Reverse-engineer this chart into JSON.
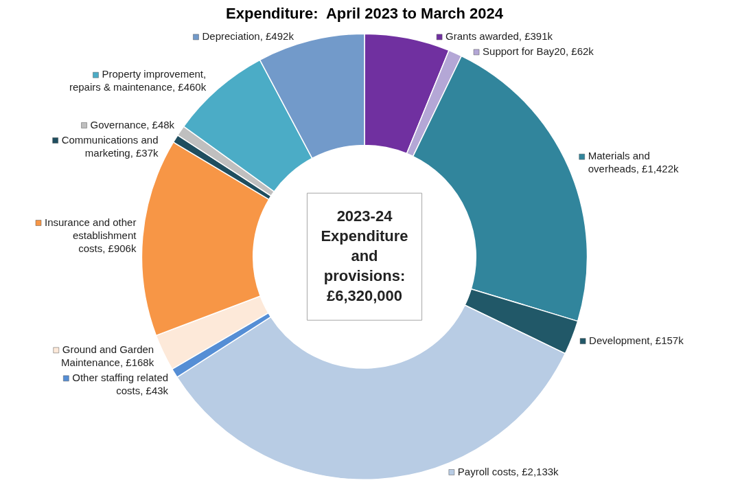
{
  "chart_data": {
    "type": "donut",
    "title": "Expenditure:  April 2023 to March 2024",
    "categories": [
      "Grants awarded",
      "Support for Bay20",
      "Materials and overheads",
      "Development",
      "Payroll costs",
      "Other staffing related costs",
      "Ground and Garden Maintenance",
      "Insurance and other establishment costs",
      "Communications and marketing",
      "Governance",
      "Property improvement, repairs & maintenance",
      "Depreciation"
    ],
    "legend": "left",
    "values": [
      391,
      62,
      1422,
      157,
      2133,
      43,
      168,
      906,
      37,
      48,
      460,
      492
    ],
    "value_labels": [
      "£391k",
      "£62k",
      "£1,422k",
      "£157k",
      "£2,133k",
      "£43k",
      "£168k",
      "£906k",
      "£37k",
      "£48k",
      "£460k",
      "£492k"
    ],
    "colors": [
      "#7030a0",
      "#b4a7d6",
      "#31859c",
      "#215868",
      "#b8cce4",
      "#558ed5",
      "#fde9d9",
      "#f79646",
      "#1f4e5f",
      "#bfbfbf",
      "#4bacc6",
      "#729aca"
    ],
    "annotations": [
      "2023-24 Expenditure and provisions: £6,320,000"
    ]
  }
}
